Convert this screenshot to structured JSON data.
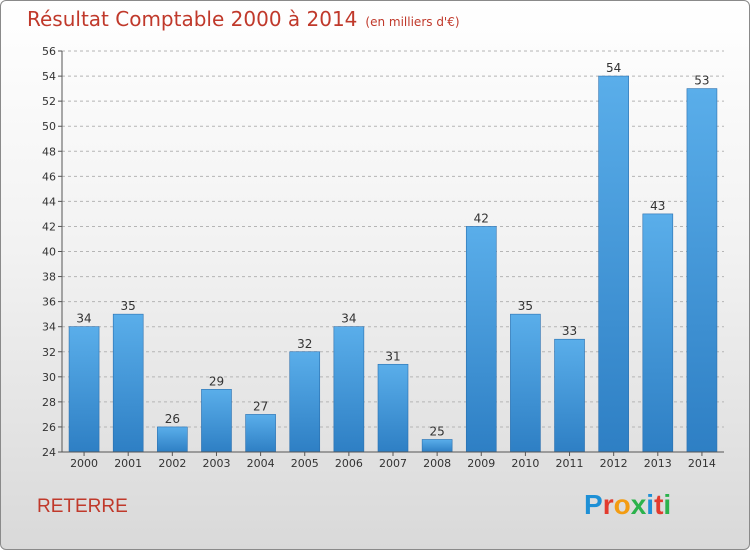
{
  "header": {
    "title": "Résultat Comptable 2000 à 2014",
    "unit": "(en milliers d'€)"
  },
  "footer": {
    "commune": "RETERRE",
    "logo_text": "Proxiti",
    "logo_colors": [
      "#1e90d6",
      "#e23b2e",
      "#f39c12",
      "#2bb24c",
      "#1e90d6",
      "#e23b2e",
      "#2bb24c"
    ]
  },
  "chart_data": {
    "type": "bar",
    "title": "Résultat Comptable 2000 à 2014",
    "subtitle": "(en milliers d'€)",
    "categories": [
      "2000",
      "2001",
      "2002",
      "2003",
      "2004",
      "2005",
      "2006",
      "2007",
      "2008",
      "2009",
      "2010",
      "2011",
      "2012",
      "2013",
      "2014"
    ],
    "values": [
      34,
      35,
      26,
      29,
      27,
      32,
      34,
      31,
      25,
      42,
      35,
      33,
      54,
      43,
      53
    ],
    "ylim": [
      24,
      56
    ],
    "yticks": [
      24,
      26,
      28,
      30,
      32,
      34,
      36,
      38,
      40,
      42,
      44,
      46,
      48,
      50,
      52,
      54,
      56
    ],
    "grid": "horizontal dashed",
    "bar_color": "#3a8fd6",
    "bar_color_light": "#5aaeea",
    "data_labels": true
  }
}
